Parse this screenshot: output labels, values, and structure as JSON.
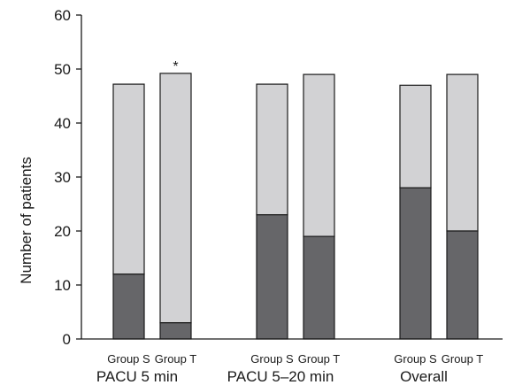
{
  "chart_data": {
    "type": "bar",
    "stacked": true,
    "ylabel": "Number of patients",
    "xlabel": "",
    "ylim": [
      0,
      60
    ],
    "yticks": [
      0,
      10,
      20,
      30,
      40,
      50,
      60
    ],
    "groups": [
      {
        "label": "PACU 5 min",
        "bars": [
          {
            "label": "Group S",
            "lower": 12,
            "total": 47.2,
            "annotation": ""
          },
          {
            "label": "Group T",
            "lower": 3,
            "total": 49.2,
            "annotation": "*"
          }
        ]
      },
      {
        "label": "PACU 5–20 min",
        "bars": [
          {
            "label": "Group S",
            "lower": 23,
            "total": 47.2,
            "annotation": ""
          },
          {
            "label": "Group T",
            "lower": 19,
            "total": 49,
            "annotation": ""
          }
        ]
      },
      {
        "label": "Overall",
        "bars": [
          {
            "label": "Group S",
            "lower": 28,
            "total": 47,
            "annotation": ""
          },
          {
            "label": "Group T",
            "lower": 20,
            "total": 49,
            "annotation": ""
          }
        ]
      }
    ],
    "colors": {
      "lower": "#666669",
      "upper": "#d2d2d4",
      "outline": "#1a1a1a"
    },
    "grid": false,
    "legend": "none"
  }
}
